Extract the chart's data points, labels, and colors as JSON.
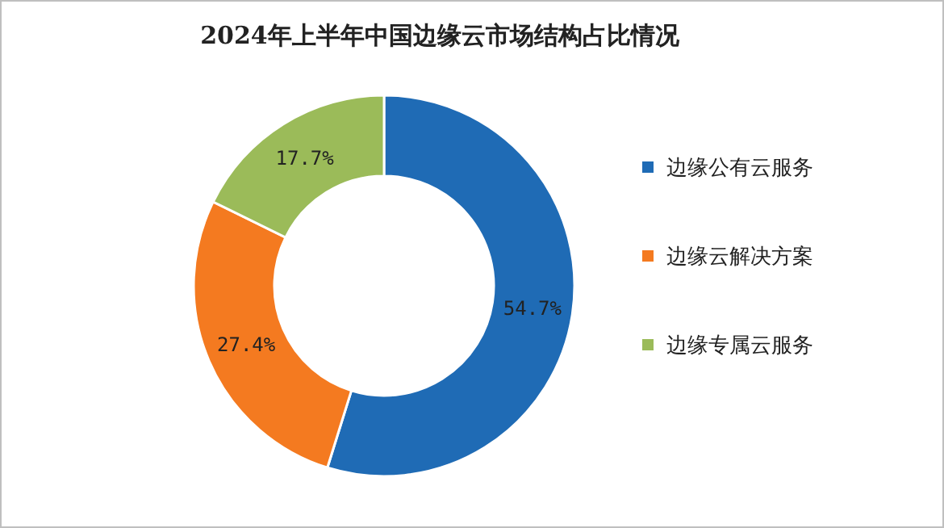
{
  "chart_data": {
    "type": "donut",
    "title": "2024年上半年中国边缘云市场结构占比情况",
    "categories": [
      "边缘公有云服务",
      "边缘云解决方案",
      "边缘专属云服务"
    ],
    "values": [
      54.7,
      27.4,
      17.7
    ],
    "colors": [
      "#1f6bb5",
      "#f47a20",
      "#9bbb59"
    ],
    "value_labels": [
      "54.7%",
      "27.4%",
      "17.7%"
    ],
    "legend": "right"
  }
}
